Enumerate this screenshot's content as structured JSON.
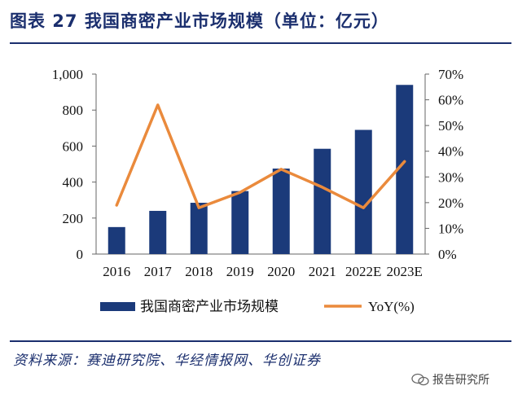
{
  "header": {
    "title": "图表 27 我国商密产业市场规模（单位：亿元）"
  },
  "footer": {
    "source": "资料来源：赛迪研究院、华经情报网、华创证券",
    "watermark": "报告研究所"
  },
  "colors": {
    "bar": "#1b3a7a",
    "line": "#ea8a3c",
    "rule": "#1b2f6e"
  },
  "chart_data": {
    "type": "bar",
    "title": "我国商密产业市场规模（单位：亿元）",
    "categories": [
      "2016",
      "2017",
      "2018",
      "2019",
      "2020",
      "2021",
      "2022E",
      "2023E"
    ],
    "series": [
      {
        "name": "我国商密产业市场规模",
        "type": "bar",
        "axis": "left",
        "values": [
          150,
          240,
          285,
          350,
          475,
          585,
          690,
          940
        ]
      },
      {
        "name": "YoY(%)",
        "type": "line",
        "axis": "right",
        "values": [
          19,
          58,
          18,
          24,
          33,
          26,
          18,
          36
        ]
      }
    ],
    "y_left": {
      "min": 0,
      "max": 1000,
      "ticks": [
        0,
        200,
        400,
        600,
        800,
        1000
      ],
      "tick_labels": [
        "0",
        "200",
        "400",
        "600",
        "800",
        "1,000"
      ]
    },
    "y_right": {
      "min": 0,
      "max": 70,
      "ticks": [
        0,
        10,
        20,
        30,
        40,
        50,
        60,
        70
      ],
      "tick_labels": [
        "0%",
        "10%",
        "20%",
        "30%",
        "40%",
        "50%",
        "60%",
        "70%"
      ]
    },
    "legend": {
      "position": "bottom",
      "entries": [
        "我国商密产业市场规模",
        "YoY(%)"
      ]
    }
  }
}
